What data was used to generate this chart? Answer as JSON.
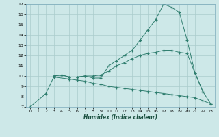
{
  "xlabel": "Humidex (Indice chaleur)",
  "bg_color": "#cde8e8",
  "grid_color": "#aacccc",
  "line_color": "#2e7d6e",
  "xlim": [
    -0.5,
    23.5
  ],
  "ylim": [
    7,
    17
  ],
  "xticks": [
    0,
    1,
    2,
    3,
    4,
    5,
    6,
    7,
    8,
    9,
    10,
    11,
    12,
    13,
    14,
    15,
    16,
    17,
    18,
    19,
    20,
    21,
    22,
    23
  ],
  "yticks": [
    7,
    8,
    9,
    10,
    11,
    12,
    13,
    14,
    15,
    16,
    17
  ],
  "series": [
    {
      "x": [
        0,
        2,
        3,
        5,
        6,
        7,
        8,
        9,
        10,
        11,
        12,
        13,
        14,
        15,
        16,
        17,
        18,
        19,
        20,
        21,
        22,
        23
      ],
      "y": [
        7.0,
        8.3,
        9.9,
        9.7,
        9.6,
        9.5,
        9.3,
        9.2,
        9.0,
        8.9,
        8.8,
        8.7,
        8.6,
        8.5,
        8.4,
        8.3,
        8.2,
        8.1,
        8.0,
        7.9,
        7.6,
        7.3
      ]
    },
    {
      "x": [
        3,
        4,
        5,
        6,
        7,
        8,
        9,
        10,
        11,
        12,
        13,
        14,
        15,
        16,
        17,
        18,
        19,
        20,
        21,
        22
      ],
      "y": [
        10.0,
        10.1,
        9.9,
        9.9,
        10.0,
        10.0,
        10.1,
        10.5,
        11.0,
        11.3,
        11.7,
        12.0,
        12.2,
        12.3,
        12.5,
        12.5,
        12.3,
        12.2,
        10.3,
        8.5
      ]
    },
    {
      "x": [
        3,
        4,
        5,
        6,
        7,
        8,
        9,
        10,
        11,
        12,
        13,
        14,
        15,
        16,
        17,
        18,
        19,
        20,
        21,
        22,
        23
      ],
      "y": [
        10.0,
        10.1,
        9.9,
        9.9,
        10.0,
        9.8,
        9.8,
        11.0,
        11.5,
        12.0,
        12.5,
        13.5,
        14.5,
        15.5,
        17.0,
        16.7,
        16.2,
        13.5,
        10.3,
        8.5,
        7.3
      ]
    }
  ]
}
